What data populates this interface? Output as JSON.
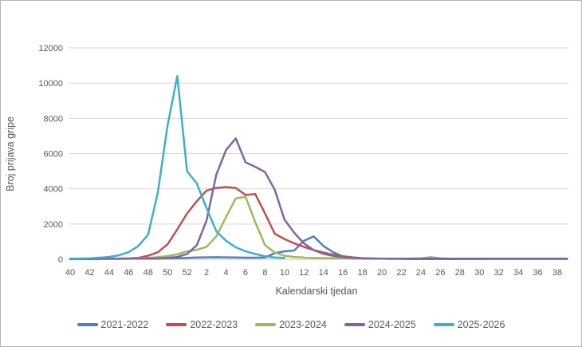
{
  "chart_data": {
    "type": "line",
    "title": "",
    "xlabel": "Kalendarski tjedan",
    "ylabel": "Broj prijava gripe",
    "x_weeks": [
      40,
      41,
      42,
      43,
      44,
      45,
      46,
      47,
      48,
      49,
      50,
      51,
      52,
      1,
      2,
      3,
      4,
      5,
      6,
      7,
      8,
      9,
      10,
      11,
      12,
      13,
      14,
      15,
      16,
      17,
      18,
      19,
      20,
      21,
      22,
      23,
      24,
      25,
      26,
      27,
      28,
      29,
      30,
      31,
      32,
      33,
      34,
      35,
      36,
      37,
      38,
      39
    ],
    "x_tick_every": 2,
    "ylim": [
      0,
      12000
    ],
    "ytick_step": 2000,
    "grid": true,
    "legend_position": "bottom",
    "series": [
      {
        "name": "2021-2022",
        "color": "#4F81BD",
        "values": [
          20,
          20,
          20,
          20,
          25,
          25,
          30,
          30,
          35,
          40,
          50,
          60,
          80,
          100,
          110,
          120,
          110,
          100,
          90,
          90,
          100,
          350,
          450,
          500,
          1050,
          1300,
          750,
          400,
          160,
          100,
          60,
          40,
          30,
          25,
          25,
          20,
          20,
          20,
          20,
          20,
          20,
          20,
          20,
          20,
          20,
          20,
          20,
          20,
          20,
          20,
          20,
          20
        ]
      },
      {
        "name": "2022-2023",
        "color": "#C0504D",
        "values": [
          30,
          30,
          30,
          30,
          30,
          40,
          50,
          80,
          200,
          400,
          850,
          1700,
          2600,
          3300,
          3900,
          4050,
          4100,
          4050,
          3650,
          3700,
          2600,
          1450,
          1150,
          900,
          700,
          520,
          380,
          260,
          170,
          110,
          60,
          40,
          30,
          25,
          25,
          20,
          20,
          20,
          20,
          20,
          20,
          20,
          20,
          20,
          20,
          20,
          20,
          20,
          20,
          20,
          20,
          20
        ]
      },
      {
        "name": "2023-2024",
        "color": "#9BBB59",
        "values": [
          30,
          30,
          30,
          30,
          30,
          30,
          40,
          50,
          80,
          120,
          180,
          280,
          450,
          540,
          700,
          1300,
          2400,
          3450,
          3550,
          2100,
          800,
          380,
          200,
          130,
          100,
          80,
          70,
          60,
          50,
          40,
          40,
          30,
          30,
          30,
          30,
          40,
          60,
          120,
          60,
          30,
          25,
          25,
          25,
          20,
          20,
          20,
          20,
          20,
          20,
          20,
          20,
          20
        ]
      },
      {
        "name": "2024-2025",
        "color": "#8064A2",
        "values": [
          20,
          20,
          20,
          20,
          25,
          25,
          30,
          30,
          40,
          50,
          80,
          130,
          300,
          800,
          2200,
          4800,
          6200,
          6860,
          5500,
          5250,
          4950,
          3950,
          2250,
          1500,
          900,
          520,
          310,
          190,
          120,
          80,
          50,
          40,
          35,
          30,
          30,
          30,
          30,
          30,
          30,
          30,
          30,
          30,
          30,
          30,
          30,
          30,
          30,
          30,
          30,
          30,
          30,
          35
        ]
      },
      {
        "name": "2025-2026",
        "color": "#3FAECB",
        "values": [
          30,
          40,
          60,
          90,
          130,
          220,
          400,
          750,
          1400,
          3800,
          7600,
          10400,
          5000,
          4300,
          2900,
          1600,
          1050,
          680,
          450,
          300,
          170,
          100,
          80,
          null,
          null,
          null,
          null,
          null,
          null,
          null,
          null,
          null,
          null,
          null,
          null,
          null,
          null,
          null,
          null,
          null,
          null,
          null,
          null,
          null,
          null,
          null,
          null,
          null,
          null,
          null,
          null,
          null
        ]
      }
    ]
  },
  "layout_colors": {
    "gridline": "#d6d6d6",
    "axis_line": "#bfbfbf",
    "tick_text": "#595959"
  }
}
